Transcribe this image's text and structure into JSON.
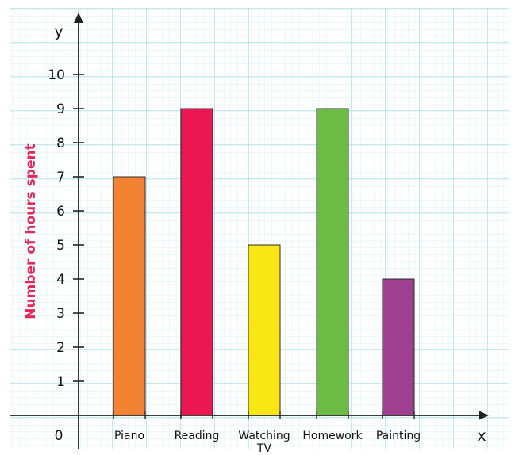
{
  "chart_data": {
    "type": "bar",
    "categories": [
      [
        "Piano"
      ],
      [
        "Reading"
      ],
      [
        "Watching",
        "TV"
      ],
      [
        "Homework"
      ],
      [
        "Painting"
      ]
    ],
    "values": [
      7,
      9,
      5,
      9,
      4
    ],
    "bar_colors": [
      "#f48233",
      "#ec1652",
      "#f9e614",
      "#6cbb44",
      "#9e3f92"
    ],
    "ylabel": "Number of hours spent",
    "ylabel_color": "#e8265b",
    "y_axis_letter": "y",
    "x_axis_letter": "x",
    "origin_label": "0",
    "yticks": [
      1,
      2,
      3,
      4,
      5,
      6,
      7,
      8,
      9,
      10
    ],
    "ylim": [
      0,
      10
    ],
    "grid": true,
    "grid_color": "#a8dde3"
  }
}
